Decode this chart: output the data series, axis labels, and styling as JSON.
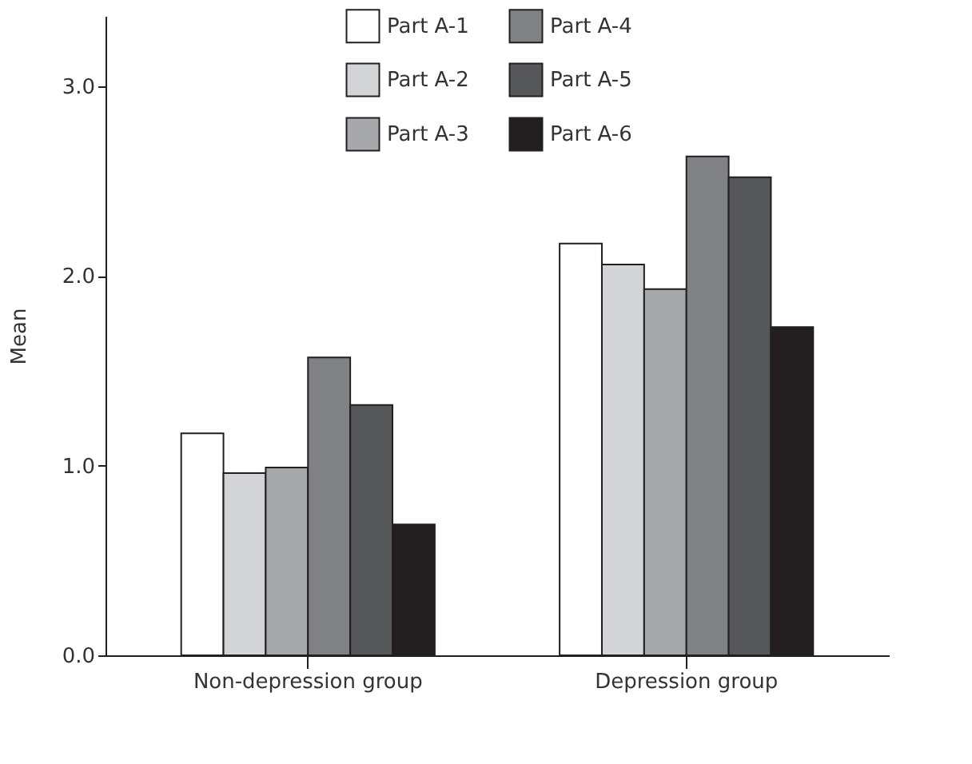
{
  "chart_data": {
    "type": "bar",
    "ylabel": "Mean",
    "categories": [
      "Non-depression group",
      "Depression group"
    ],
    "series": [
      {
        "name": "Part A-1",
        "color": "#ffffff",
        "values": [
          1.17,
          2.17
        ]
      },
      {
        "name": "Part A-2",
        "color": "#d3d4d6",
        "values": [
          0.96,
          2.06
        ]
      },
      {
        "name": "Part A-3",
        "color": "#a7a8ab",
        "values": [
          0.99,
          1.93
        ]
      },
      {
        "name": "Part A-4",
        "color": "#808184",
        "values": [
          1.57,
          2.63
        ]
      },
      {
        "name": "Part A-5",
        "color": "#565759",
        "values": [
          1.32,
          2.52
        ]
      },
      {
        "name": "Part A-6",
        "color": "#231f20",
        "values": [
          0.69,
          1.73
        ]
      }
    ],
    "ylim": [
      0,
      3.37
    ],
    "yticks": [
      {
        "value": 0,
        "label": "0.0"
      },
      {
        "value": 1,
        "label": "1.0"
      },
      {
        "value": 2,
        "label": "2.0"
      },
      {
        "value": 3,
        "label": "3.0"
      }
    ],
    "grid": false,
    "legend": "top"
  }
}
